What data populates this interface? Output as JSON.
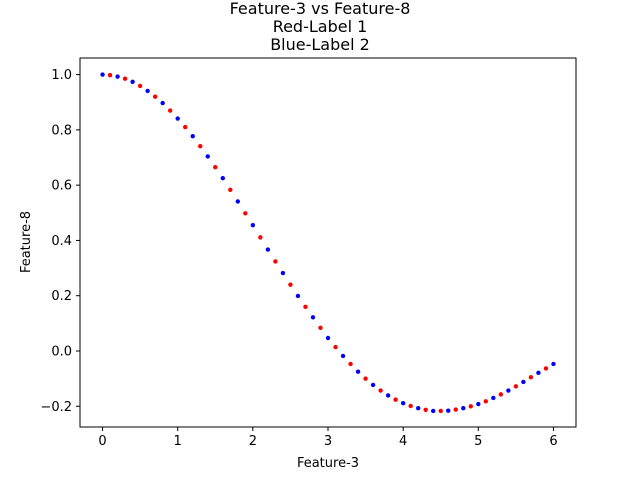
{
  "chart_data": {
    "type": "scatter",
    "title_lines": [
      "Feature-3 vs Feature-8",
      "Red-Label 1",
      "Blue-Label 2"
    ],
    "xlabel": "Feature-3",
    "ylabel": "Feature-8",
    "xlim": [
      -0.3,
      6.3
    ],
    "ylim": [
      -0.275,
      1.06
    ],
    "xticks": [
      0,
      1,
      2,
      3,
      4,
      5,
      6
    ],
    "xtick_labels": [
      "0",
      "1",
      "2",
      "3",
      "4",
      "5",
      "6"
    ],
    "yticks": [
      -0.2,
      0.0,
      0.2,
      0.4,
      0.6,
      0.8,
      1.0
    ],
    "ytick_labels": [
      "−0.2",
      "0.0",
      "0.2",
      "0.4",
      "0.6",
      "0.8",
      "1.0"
    ],
    "grid": false,
    "legend": "none",
    "series": [
      {
        "color": "#0000ff",
        "x": [
          0.0,
          0.2,
          0.4,
          0.6,
          0.8,
          1.0,
          1.2,
          1.4,
          1.6,
          1.8,
          2.0,
          2.2,
          2.4,
          2.6,
          2.8,
          3.0,
          3.2,
          3.4,
          3.6,
          3.8,
          4.0,
          4.2,
          4.4,
          4.6,
          4.8,
          5.0,
          5.2,
          5.4,
          5.6,
          5.8,
          6.0
        ],
        "y": [
          1.0,
          0.993,
          0.974,
          0.941,
          0.897,
          0.841,
          0.777,
          0.704,
          0.625,
          0.541,
          0.455,
          0.367,
          0.282,
          0.199,
          0.122,
          0.047,
          -0.018,
          -0.075,
          -0.123,
          -0.161,
          -0.189,
          -0.207,
          -0.217,
          -0.216,
          -0.207,
          -0.192,
          -0.17,
          -0.143,
          -0.112,
          -0.079,
          -0.047
        ]
      },
      {
        "color": "#ff0000",
        "x": [
          0.1,
          0.3,
          0.5,
          0.7,
          0.9,
          1.1,
          1.3,
          1.5,
          1.7,
          1.9,
          2.1,
          2.3,
          2.5,
          2.7,
          2.9,
          3.1,
          3.3,
          3.5,
          3.7,
          3.9,
          4.1,
          4.3,
          4.5,
          4.7,
          4.9,
          5.1,
          5.3,
          5.5,
          5.7,
          5.9
        ],
        "y": [
          0.998,
          0.985,
          0.959,
          0.92,
          0.87,
          0.81,
          0.741,
          0.665,
          0.583,
          0.498,
          0.411,
          0.324,
          0.24,
          0.16,
          0.084,
          0.014,
          -0.047,
          -0.1,
          -0.143,
          -0.176,
          -0.199,
          -0.213,
          -0.217,
          -0.212,
          -0.2,
          -0.182,
          -0.157,
          -0.128,
          -0.095,
          -0.063
        ]
      }
    ]
  }
}
